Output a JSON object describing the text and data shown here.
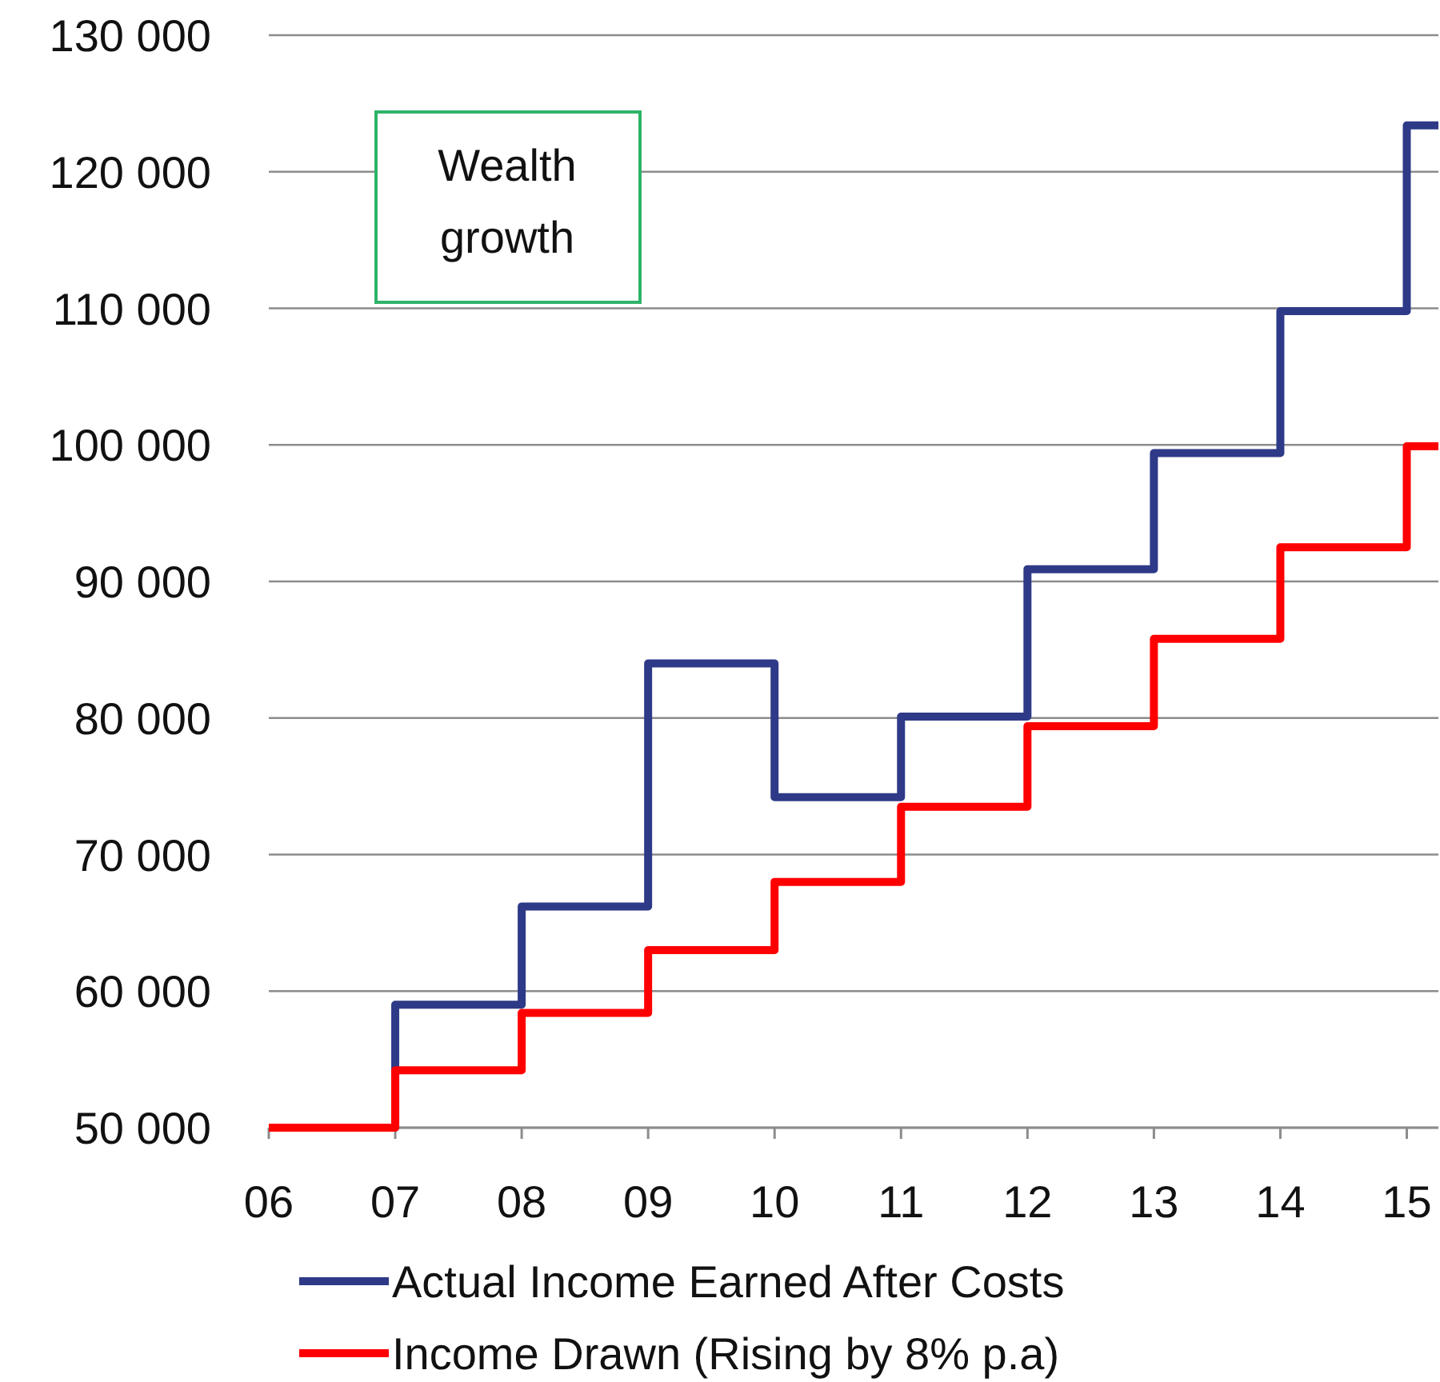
{
  "chart_data": {
    "type": "step",
    "annotations": [
      "Wealth growth"
    ],
    "x": [
      2006,
      2007,
      2008,
      2009,
      2010,
      2011,
      2012,
      2013,
      2014,
      2015,
      2015.25
    ],
    "series": [
      {
        "name": "Actual Income Earned After Costs",
        "color": "#2e3a87",
        "values": [
          50000,
          59000,
          66200,
          84000,
          74200,
          80100,
          90900,
          99400,
          109800,
          123400,
          123400
        ]
      },
      {
        "name": "Income Drawn (Rising by 8% p.a)",
        "color": "#ff0000",
        "values": [
          50000,
          54200,
          58400,
          63000,
          68000,
          73500,
          79400,
          85800,
          92500,
          99900,
          99900
        ]
      }
    ],
    "xlim": [
      2006,
      2015.25
    ],
    "xticks": [
      {
        "value": 2006,
        "label": "06"
      },
      {
        "value": 2007,
        "label": "07"
      },
      {
        "value": 2008,
        "label": "08"
      },
      {
        "value": 2009,
        "label": "09"
      },
      {
        "value": 2010,
        "label": "10"
      },
      {
        "value": 2011,
        "label": "11"
      },
      {
        "value": 2012,
        "label": "12"
      },
      {
        "value": 2013,
        "label": "13"
      },
      {
        "value": 2014,
        "label": "14"
      },
      {
        "value": 2015,
        "label": "15"
      }
    ],
    "ylim": [
      50000,
      130000
    ],
    "yticks": [
      {
        "value": 50000,
        "label": "50 000"
      },
      {
        "value": 60000,
        "label": "60 000"
      },
      {
        "value": 70000,
        "label": "70 000"
      },
      {
        "value": 80000,
        "label": "80 000"
      },
      {
        "value": 90000,
        "label": "90 000"
      },
      {
        "value": 100000,
        "label": "100 000"
      },
      {
        "value": 110000,
        "label": "110 000"
      },
      {
        "value": 120000,
        "label": "120 000"
      },
      {
        "value": 130000,
        "label": "130 000"
      }
    ],
    "grid": "y",
    "legend": "bottom",
    "line_style": "solid"
  }
}
